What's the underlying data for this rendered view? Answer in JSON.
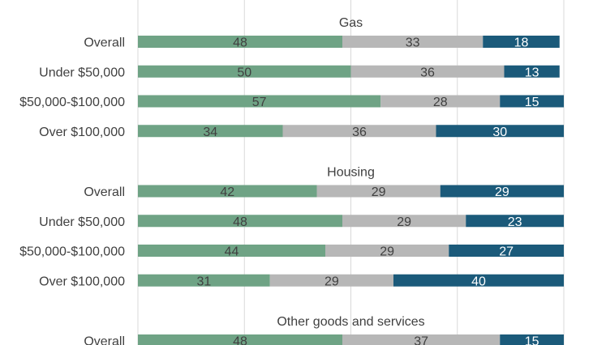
{
  "chart_data": {
    "type": "bar",
    "orientation": "horizontal",
    "stacked": true,
    "xlim": [
      0,
      100
    ],
    "grid": true,
    "colors": {
      "seg1": "#6fa385",
      "seg2": "#b7b7b7",
      "seg3": "#1b5a7a"
    },
    "groups": [
      {
        "title": "Gas",
        "rows": [
          {
            "label": "Overall",
            "values": [
              48,
              33,
              18
            ]
          },
          {
            "label": "Under $50,000",
            "values": [
              50,
              36,
              13
            ]
          },
          {
            "label": "$50,000-$100,000",
            "values": [
              57,
              28,
              15
            ]
          },
          {
            "label": "Over $100,000",
            "values": [
              34,
              36,
              30
            ]
          }
        ]
      },
      {
        "title": "Housing",
        "rows": [
          {
            "label": "Overall",
            "values": [
              42,
              29,
              29
            ]
          },
          {
            "label": "Under $50,000",
            "values": [
              48,
              29,
              23
            ]
          },
          {
            "label": "$50,000-$100,000",
            "values": [
              44,
              29,
              27
            ]
          },
          {
            "label": "Over $100,000",
            "values": [
              31,
              29,
              40
            ]
          }
        ]
      },
      {
        "title": "Other goods and services",
        "rows": [
          {
            "label": "Overall",
            "values": [
              48,
              37,
              15
            ]
          }
        ]
      }
    ]
  }
}
